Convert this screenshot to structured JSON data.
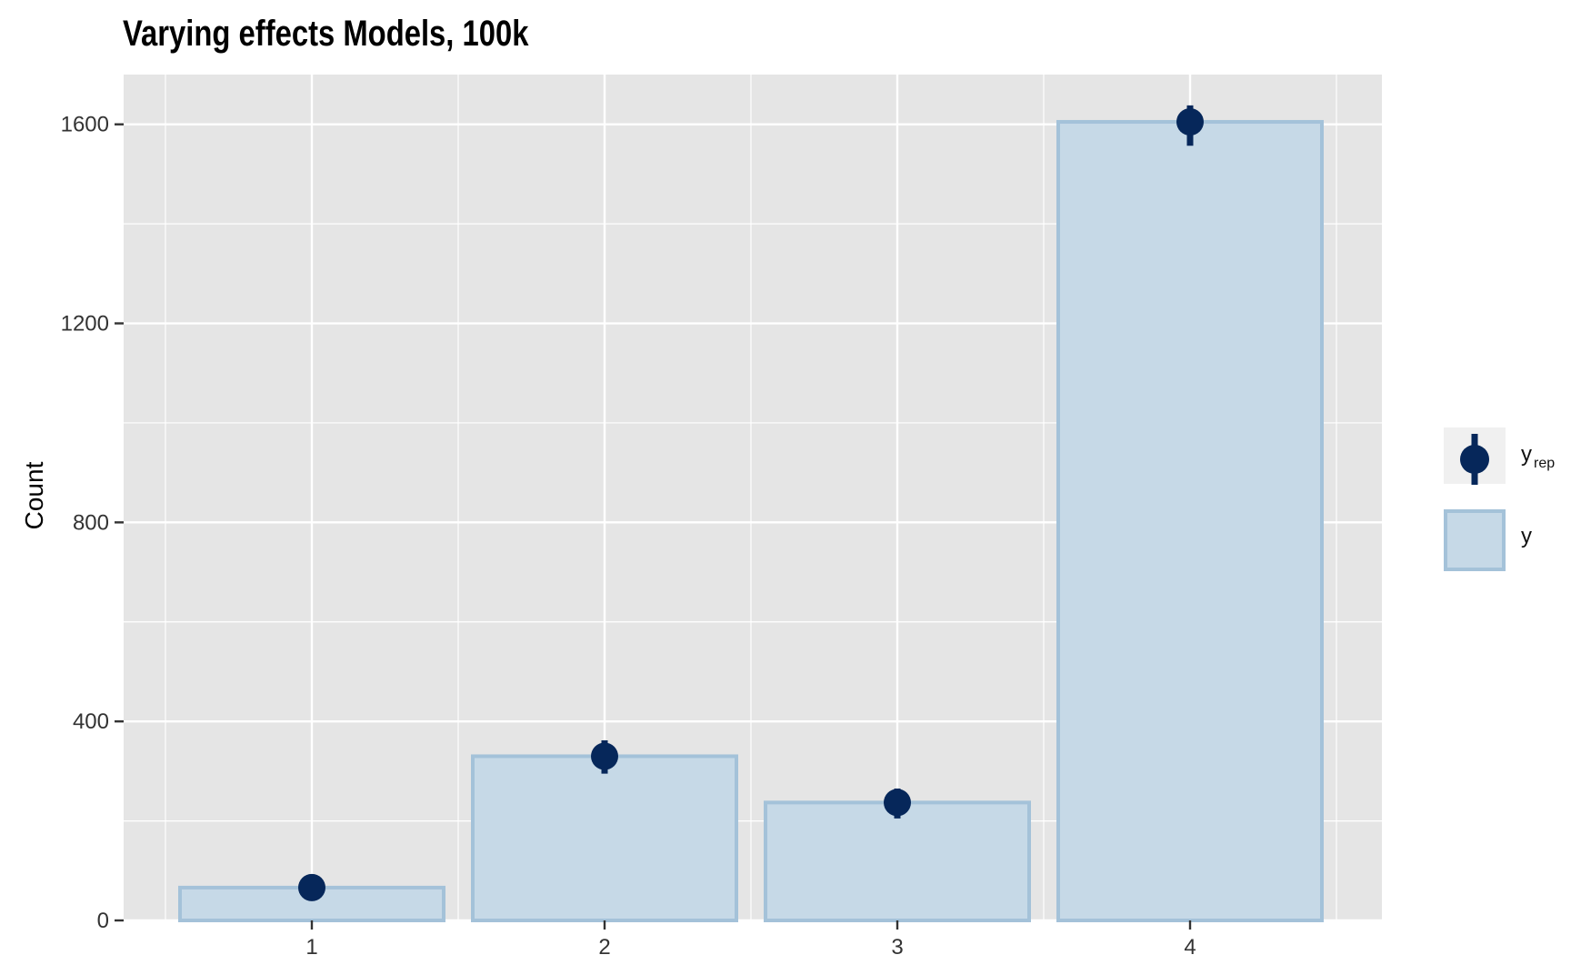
{
  "chart_data": {
    "type": "bar",
    "title": "Varying effects Models, 100k",
    "ylabel": "Count",
    "xlabel": "",
    "categories": [
      "1",
      "2",
      "3",
      "4"
    ],
    "y_ticks": [
      0,
      400,
      800,
      1200,
      1600
    ],
    "ylim": [
      0,
      1700
    ],
    "grid": true,
    "legend_position": "right",
    "series": [
      {
        "name": "y",
        "kind": "bar",
        "values": [
          66,
          330,
          237,
          1605
        ]
      },
      {
        "name": "y_rep",
        "kind": "pointrange",
        "values": [
          66,
          330,
          237,
          1605
        ],
        "lower": [
          56,
          295,
          205,
          1557
        ],
        "upper": [
          78,
          362,
          265,
          1638
        ]
      }
    ],
    "legend": {
      "yrep_main": "y",
      "yrep_sub": "rep",
      "y_label": "y"
    },
    "colors": {
      "panel_background": "#e5e5e5",
      "grid": "#ffffff",
      "bar_fill": "#c6d9e7",
      "bar_stroke": "#a4c2d9",
      "point": "#06275a",
      "legend_key_background": "#f0f0f0"
    }
  }
}
